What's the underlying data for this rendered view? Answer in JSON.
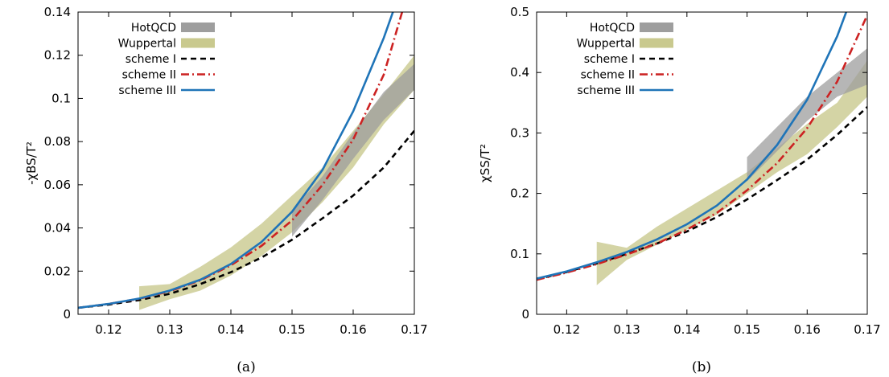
{
  "chart_data": [
    {
      "type": "line",
      "caption": "(a)",
      "ylabel": "-χBS/T²",
      "xlim": [
        0.115,
        0.17
      ],
      "ylim": [
        0,
        0.14
      ],
      "xticks": [
        "0.12",
        "0.13",
        "0.14",
        "0.15",
        "0.16",
        "0.17"
      ],
      "xtick_values": [
        0.12,
        0.13,
        0.14,
        0.15,
        0.16,
        0.17
      ],
      "yticks": [
        "0",
        "0.02",
        "0.04",
        "0.06",
        "0.08",
        "0.1",
        "0.12",
        "0.14"
      ],
      "ytick_values": [
        0,
        0.02,
        0.04,
        0.06,
        0.08,
        0.1,
        0.12,
        0.14
      ],
      "grid": false,
      "legend_position": "top-left",
      "bands": [
        {
          "name": "HotQCD",
          "color": "#9e9e9e",
          "x": [
            0.15,
            0.155,
            0.16,
            0.165,
            0.17
          ],
          "lower": [
            0.036,
            0.053,
            0.072,
            0.09,
            0.104
          ],
          "upper": [
            0.048,
            0.064,
            0.084,
            0.103,
            0.116
          ]
        },
        {
          "name": "Wuppertal",
          "color": "#c9c98e",
          "x": [
            0.125,
            0.13,
            0.135,
            0.14,
            0.145,
            0.15,
            0.155,
            0.16,
            0.165,
            0.17
          ],
          "lower": [
            0.002,
            0.007,
            0.011,
            0.018,
            0.027,
            0.038,
            0.052,
            0.068,
            0.088,
            0.104
          ],
          "upper": [
            0.013,
            0.014,
            0.022,
            0.031,
            0.042,
            0.055,
            0.068,
            0.085,
            0.102,
            0.12
          ]
        }
      ],
      "series": [
        {
          "name": "scheme I",
          "color": "#000000",
          "style": "dashed",
          "x": [
            0.115,
            0.12,
            0.125,
            0.13,
            0.135,
            0.14,
            0.145,
            0.15,
            0.155,
            0.16,
            0.165,
            0.17
          ],
          "y": [
            0.003,
            0.0045,
            0.0066,
            0.0095,
            0.014,
            0.0195,
            0.0263,
            0.0345,
            0.0445,
            0.055,
            0.068,
            0.085
          ]
        },
        {
          "name": "scheme II",
          "color": "#cc2222",
          "style": "dashdot",
          "x": [
            0.115,
            0.12,
            0.125,
            0.13,
            0.135,
            0.14,
            0.145,
            0.15,
            0.155,
            0.16,
            0.165,
            0.168
          ],
          "y": [
            0.003,
            0.0048,
            0.0072,
            0.0107,
            0.0157,
            0.0227,
            0.0317,
            0.0435,
            0.06,
            0.081,
            0.111,
            0.14
          ]
        },
        {
          "name": "scheme III",
          "color": "#1f74b8",
          "style": "solid",
          "x": [
            0.115,
            0.12,
            0.125,
            0.13,
            0.135,
            0.14,
            0.145,
            0.15,
            0.155,
            0.16,
            0.165,
            0.1665
          ],
          "y": [
            0.003,
            0.0048,
            0.0073,
            0.011,
            0.016,
            0.0233,
            0.0335,
            0.0475,
            0.067,
            0.094,
            0.128,
            0.14
          ]
        }
      ]
    },
    {
      "type": "line",
      "caption": "(b)",
      "ylabel": "χSS/T²",
      "xlim": [
        0.115,
        0.17
      ],
      "ylim": [
        0,
        0.5
      ],
      "xticks": [
        "0.12",
        "0.13",
        "0.14",
        "0.15",
        "0.16",
        "0.17"
      ],
      "xtick_values": [
        0.12,
        0.13,
        0.14,
        0.15,
        0.16,
        0.17
      ],
      "yticks": [
        "0",
        "0.1",
        "0.2",
        "0.3",
        "0.4",
        "0.5"
      ],
      "ytick_values": [
        0,
        0.1,
        0.2,
        0.3,
        0.4,
        0.5
      ],
      "grid": false,
      "legend_position": "top-left",
      "bands": [
        {
          "name": "HotQCD",
          "color": "#9e9e9e",
          "x": [
            0.15,
            0.155,
            0.16,
            0.165,
            0.17
          ],
          "lower": [
            0.22,
            0.27,
            0.32,
            0.36,
            0.38
          ],
          "upper": [
            0.26,
            0.31,
            0.36,
            0.4,
            0.44
          ]
        },
        {
          "name": "Wuppertal",
          "color": "#c9c98e",
          "x": [
            0.125,
            0.13,
            0.135,
            0.14,
            0.145,
            0.15,
            0.155,
            0.16,
            0.165,
            0.17
          ],
          "lower": [
            0.048,
            0.09,
            0.115,
            0.14,
            0.165,
            0.2,
            0.235,
            0.265,
            0.31,
            0.36
          ],
          "upper": [
            0.12,
            0.11,
            0.145,
            0.175,
            0.205,
            0.235,
            0.275,
            0.315,
            0.35,
            0.42
          ]
        }
      ],
      "series": [
        {
          "name": "scheme I",
          "color": "#000000",
          "style": "dashed",
          "x": [
            0.115,
            0.12,
            0.125,
            0.13,
            0.135,
            0.14,
            0.145,
            0.15,
            0.155,
            0.16,
            0.165,
            0.17
          ],
          "y": [
            0.058,
            0.07,
            0.084,
            0.1,
            0.117,
            0.137,
            0.161,
            0.19,
            0.222,
            0.256,
            0.297,
            0.343
          ]
        },
        {
          "name": "scheme II",
          "color": "#cc2222",
          "style": "dashdot",
          "x": [
            0.115,
            0.12,
            0.125,
            0.13,
            0.135,
            0.14,
            0.145,
            0.15,
            0.155,
            0.16,
            0.165,
            0.17
          ],
          "y": [
            0.057,
            0.069,
            0.083,
            0.099,
            0.117,
            0.14,
            0.168,
            0.205,
            0.25,
            0.308,
            0.385,
            0.495
          ]
        },
        {
          "name": "scheme III",
          "color": "#1f74b8",
          "style": "solid",
          "x": [
            0.115,
            0.12,
            0.125,
            0.13,
            0.135,
            0.14,
            0.145,
            0.15,
            0.155,
            0.16,
            0.165,
            0.1665
          ],
          "y": [
            0.059,
            0.071,
            0.086,
            0.103,
            0.124,
            0.149,
            0.18,
            0.223,
            0.28,
            0.355,
            0.46,
            0.5
          ]
        }
      ]
    }
  ]
}
